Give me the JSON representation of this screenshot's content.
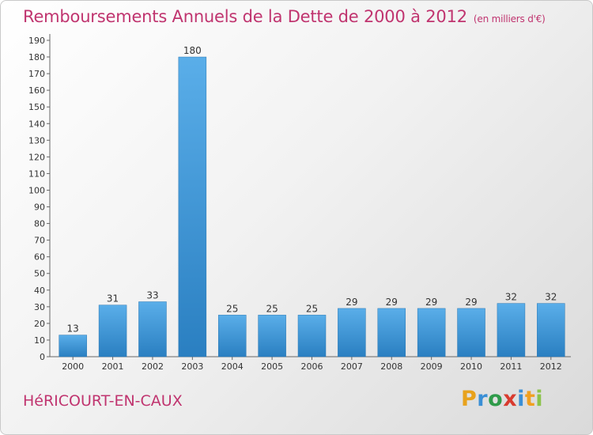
{
  "header": {
    "title": "Remboursements Annuels de la Dette de 2000 à 2012",
    "subtitle": "(en milliers d'€)"
  },
  "footer": {
    "commune": "HéRICOURT-EN-CAUX",
    "logo_letters": [
      "P",
      "r",
      "o",
      "x",
      "i",
      "t",
      "i"
    ]
  },
  "colors": {
    "title": "#c0346f",
    "bar_top": "#5aaee9",
    "bar_bottom": "#2a7fc1",
    "logo": [
      "#e8a21c",
      "#3a8fd6",
      "#2f9b4a",
      "#d83b2f",
      "#3a8fd6",
      "#f0a020",
      "#8bc34a"
    ]
  },
  "chart_data": {
    "type": "bar",
    "title": "Remboursements Annuels de la Dette de 2000 à 2012",
    "xlabel": "",
    "ylabel": "(en milliers d'€)",
    "categories": [
      "2000",
      "2001",
      "2002",
      "2003",
      "2004",
      "2005",
      "2006",
      "2007",
      "2008",
      "2009",
      "2010",
      "2011",
      "2012"
    ],
    "values": [
      13,
      31,
      33,
      180,
      25,
      25,
      25,
      29,
      29,
      29,
      29,
      32,
      32
    ],
    "ylim": [
      0,
      190
    ],
    "yticks": [
      0,
      10,
      20,
      30,
      40,
      50,
      60,
      70,
      80,
      90,
      100,
      110,
      120,
      130,
      140,
      150,
      160,
      170,
      180,
      190
    ],
    "grid": false
  }
}
